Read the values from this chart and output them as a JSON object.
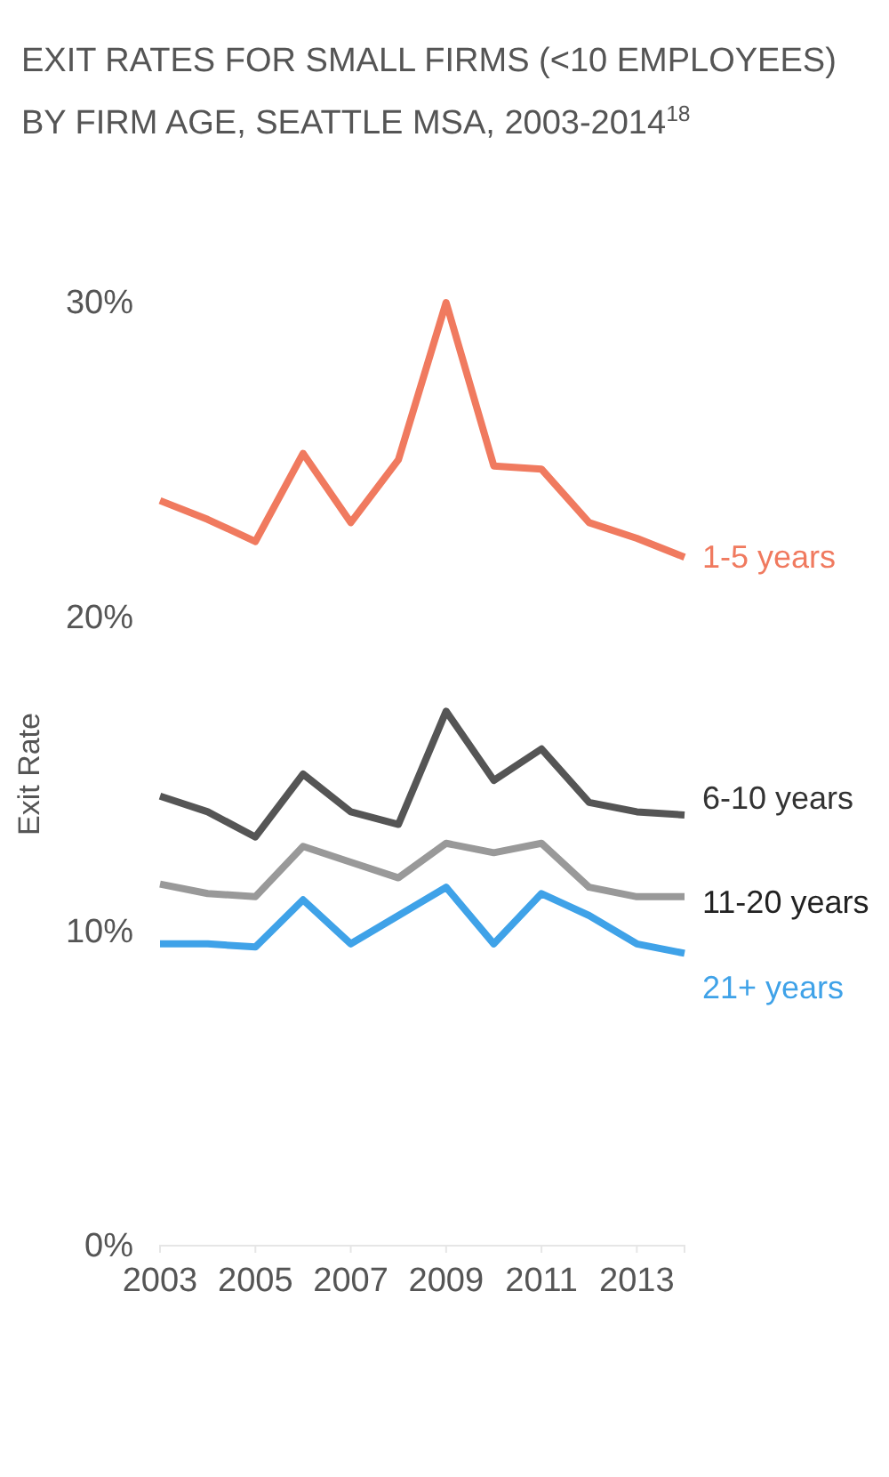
{
  "chart_data": {
    "type": "line",
    "title": "EXIT RATES FOR SMALL FIRMS (<10 EMPLOYEES)",
    "subtitle": "BY FIRM AGE, SEATTLE MSA, 2003-2014$^{18}$",
    "ylabel": "Exit Rate",
    "x": [
      2003,
      2004,
      2005,
      2006,
      2007,
      2008,
      2009,
      2010,
      2011,
      2012,
      2013,
      2014
    ],
    "xlim": [
      2003,
      2014
    ],
    "xticks": [
      2003,
      2005,
      2007,
      2009,
      2011,
      2013
    ],
    "ylim": [
      0,
      30
    ],
    "yticks": [
      {
        "value": 0,
        "label": "0%"
      },
      {
        "value": 10,
        "label": "10%"
      },
      {
        "value": 20,
        "label": "20%"
      },
      {
        "value": 30,
        "label": "30%"
      }
    ],
    "grid": false,
    "legend": false,
    "series": [
      {
        "name": "1-5 years",
        "color": "#f07a5f",
        "values": [
          23.7,
          23.1,
          22.4,
          25.2,
          23.0,
          25.0,
          30.0,
          24.8,
          24.7,
          23.0,
          22.5,
          21.9
        ]
      },
      {
        "name": "6-10 years",
        "color": "#555555",
        "values": [
          14.3,
          13.8,
          13.0,
          15.0,
          13.8,
          13.4,
          17.0,
          14.8,
          15.8,
          14.1,
          13.8,
          13.7
        ]
      },
      {
        "name": "11-20 years",
        "color": "#999999",
        "values": [
          11.5,
          11.2,
          11.1,
          12.7,
          12.2,
          11.7,
          12.8,
          12.5,
          12.8,
          11.4,
          11.1,
          11.1
        ]
      },
      {
        "name": "21+ years",
        "color": "#3fa2e8",
        "values": [
          9.6,
          9.6,
          9.5,
          11.0,
          9.6,
          10.5,
          11.4,
          9.6,
          11.2,
          10.5,
          9.6,
          9.3
        ]
      }
    ]
  }
}
